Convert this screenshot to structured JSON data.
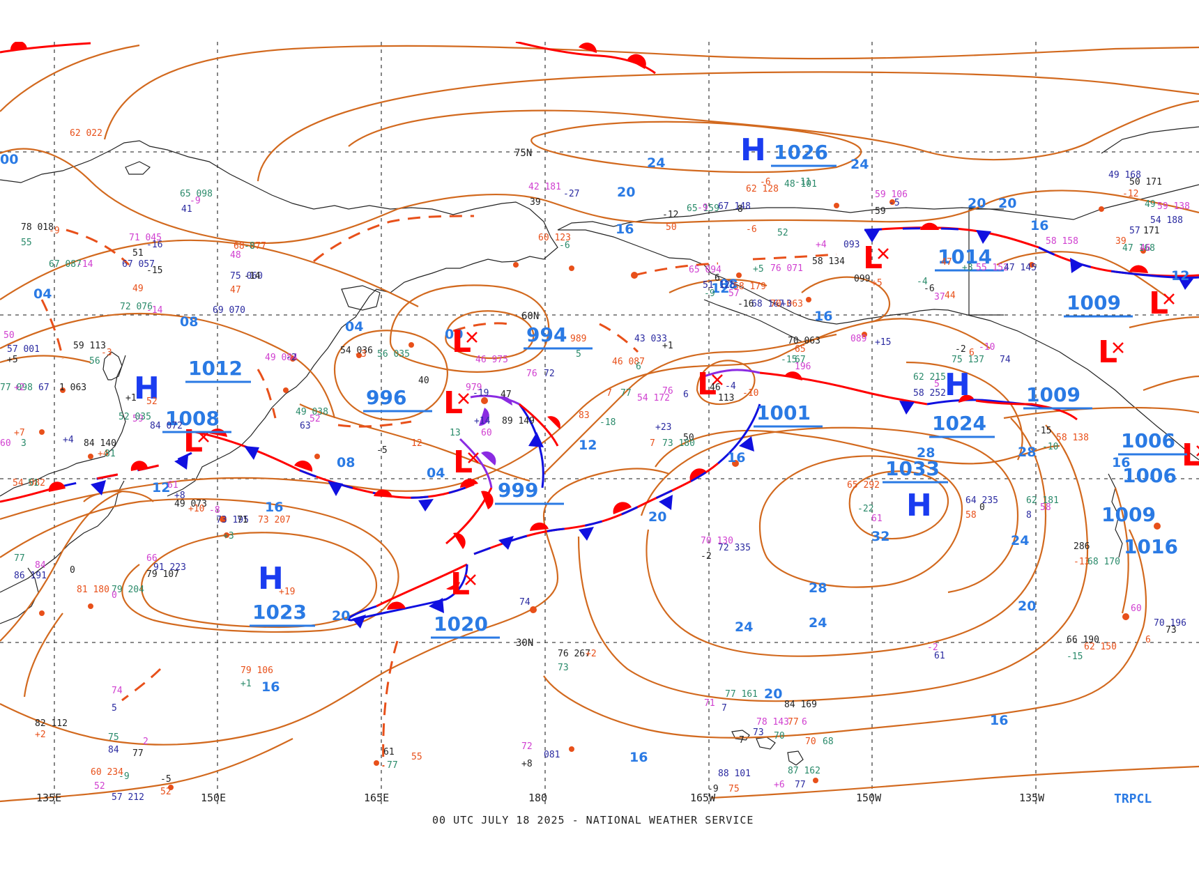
{
  "footer": {
    "text": "00 UTC JULY 18 2025 - NATIONAL WEATHER SERVICE",
    "product": "TRPCL"
  },
  "latitudes": [
    "75N",
    "60N",
    "30N"
  ],
  "longitudes": [
    "135E",
    "150E",
    "165E",
    "180",
    "165W",
    "150W",
    "135W"
  ],
  "colors": {
    "isobar": "#d2691e",
    "high": "#1a3cf0",
    "low": "#ff0000",
    "cold_front": "#1010e0",
    "warm_front": "#ff0000",
    "occluded": "#8a2be2",
    "label": "#2a7ae4"
  },
  "highs": [
    {
      "letter": "H",
      "pressure": "1026"
    },
    {
      "letter": "H",
      "pressure": "1012"
    },
    {
      "letter": "H",
      "pressure": "1023"
    },
    {
      "letter": "H",
      "pressure": "1024"
    },
    {
      "letter": "H",
      "pressure": "1033"
    }
  ],
  "lows": [
    {
      "letter": "L",
      "pressure": "1014"
    },
    {
      "letter": "L",
      "pressure": "1009"
    },
    {
      "letter": "L",
      "pressure": "994"
    },
    {
      "letter": "L",
      "pressure": "996"
    },
    {
      "letter": "L",
      "pressure": "999"
    },
    {
      "letter": "L",
      "pressure": "1008"
    },
    {
      "letter": "L",
      "pressure": "1020"
    },
    {
      "letter": "L",
      "pressure": "1001"
    },
    {
      "letter": "L",
      "pressure": "1009"
    },
    {
      "letter": "L",
      "pressure": "1006"
    }
  ],
  "extra_pressures": [
    "1016",
    "1006",
    "1009"
  ],
  "isobar_labels": [
    "24",
    "24",
    "20",
    "20",
    "16",
    "16",
    "12",
    "12",
    "08",
    "08",
    "04",
    "04",
    "00",
    "00",
    "12",
    "16",
    "16",
    "20",
    "20",
    "24",
    "28",
    "28",
    "32",
    "24",
    "20",
    "20",
    "16",
    "16",
    "16",
    "20",
    "24",
    "28",
    "16",
    "08",
    "16",
    "12",
    "04"
  ],
  "observations": [
    {
      "t": "62 022"
    },
    {
      "t": "65 098"
    },
    {
      "t": "-9"
    },
    {
      "t": "41"
    },
    {
      "t": "78 018"
    },
    {
      "t": "-9"
    },
    {
      "t": "55"
    },
    {
      "t": "71 045"
    },
    {
      "t": "-16"
    },
    {
      "t": "51"
    },
    {
      "t": "68 077"
    },
    {
      "t": "-8"
    },
    {
      "t": "48"
    },
    {
      "t": "75 060"
    },
    {
      "t": "-14"
    },
    {
      "t": "47"
    },
    {
      "t": "67 087"
    },
    {
      "t": "-14"
    },
    {
      "t": "67 057"
    },
    {
      "t": "-15"
    },
    {
      "t": "49"
    },
    {
      "t": "72 076"
    },
    {
      "t": "-14"
    },
    {
      "t": "69 070"
    },
    {
      "t": "59 113"
    },
    {
      "t": "-3"
    },
    {
      "t": "56"
    },
    {
      "t": "49 084"
    },
    {
      "t": "-2"
    },
    {
      "t": "54 036"
    },
    {
      "t": "+3"
    },
    {
      "t": "56 035"
    },
    {
      "t": "42 181"
    },
    {
      "t": "-27"
    },
    {
      "t": "39"
    },
    {
      "t": "60 123"
    },
    {
      "t": "-6"
    },
    {
      "t": "46 975"
    },
    {
      "t": "43 033"
    },
    {
      "t": "+1"
    },
    {
      "t": "989"
    },
    {
      "t": "5"
    },
    {
      "t": "979"
    },
    {
      "t": "-19"
    },
    {
      "t": "47"
    },
    {
      "t": "46 087"
    },
    {
      "t": "6"
    },
    {
      "t": "54 172"
    },
    {
      "t": "+23"
    },
    {
      "t": "50"
    },
    {
      "t": "7"
    },
    {
      "t": "73 180"
    },
    {
      "t": "-8"
    },
    {
      "t": "73 195"
    },
    {
      "t": "71"
    },
    {
      "t": "73 207"
    },
    {
      "t": "+3"
    },
    {
      "t": "66"
    },
    {
      "t": "91 223"
    },
    {
      "t": "79 107"
    },
    {
      "t": "+19"
    },
    {
      "t": "77"
    },
    {
      "t": "84"
    },
    {
      "t": "86 191"
    },
    {
      "t": "0"
    },
    {
      "t": "81 180"
    },
    {
      "t": "79 204"
    },
    {
      "t": "0"
    },
    {
      "t": "74"
    },
    {
      "t": "76 267"
    },
    {
      "t": "+2"
    },
    {
      "t": "73"
    },
    {
      "t": "70 130"
    },
    {
      "t": "72 335"
    },
    {
      "t": "-2"
    },
    {
      "t": "65 292"
    },
    {
      "t": "-22"
    },
    {
      "t": "61"
    },
    {
      "t": "64 235"
    },
    {
      "t": "0"
    },
    {
      "t": "58"
    },
    {
      "t": "62 181"
    },
    {
      "t": "58"
    },
    {
      "t": "8"
    },
    {
      "t": "286"
    },
    {
      "t": "-13"
    },
    {
      "t": "68 170"
    },
    {
      "t": "-2"
    },
    {
      "t": "61"
    },
    {
      "t": "66 190"
    },
    {
      "t": "62 150"
    },
    {
      "t": "-15"
    },
    {
      "t": "60"
    },
    {
      "t": "70 196"
    },
    {
      "t": "73"
    },
    {
      "t": "6"
    },
    {
      "t": "77 161"
    },
    {
      "t": "71"
    },
    {
      "t": "7"
    },
    {
      "t": "84 169"
    },
    {
      "t": "70"
    },
    {
      "t": "68"
    },
    {
      "t": "78 143"
    },
    {
      "t": "73"
    },
    {
      "t": "7"
    },
    {
      "t": "77"
    },
    {
      "t": "70"
    },
    {
      "t": "6"
    },
    {
      "t": "88 101"
    },
    {
      "t": "-9"
    },
    {
      "t": "75"
    },
    {
      "t": "87 162"
    },
    {
      "t": "+6"
    },
    {
      "t": "77"
    },
    {
      "t": "61"
    },
    {
      "t": "55"
    },
    {
      "t": "77"
    },
    {
      "t": "72"
    },
    {
      "t": "081"
    },
    {
      "t": "+8"
    },
    {
      "t": "79 106"
    },
    {
      "t": "+1"
    },
    {
      "t": "74"
    },
    {
      "t": "5"
    },
    {
      "t": "82 112"
    },
    {
      "t": "+2"
    },
    {
      "t": "75"
    },
    {
      "t": "2"
    },
    {
      "t": "84"
    },
    {
      "t": "77"
    },
    {
      "t": "60 234"
    },
    {
      "t": "-9"
    },
    {
      "t": "52"
    },
    {
      "t": "57 212"
    },
    {
      "t": "-5"
    },
    {
      "t": "52"
    },
    {
      "t": "62 215"
    },
    {
      "t": "5"
    },
    {
      "t": "58 252"
    },
    {
      "t": "-2"
    },
    {
      "t": "6"
    },
    {
      "t": "75 137"
    },
    {
      "t": "-10"
    },
    {
      "t": "74"
    },
    {
      "t": "-15"
    },
    {
      "t": "58 138"
    },
    {
      "t": "-10"
    },
    {
      "t": "55 152"
    },
    {
      "t": "47 145"
    },
    {
      "t": "-6"
    },
    {
      "t": "44"
    },
    {
      "t": "-4"
    },
    {
      "t": "37"
    },
    {
      "t": "57"
    },
    {
      "t": "171"
    },
    {
      "t": "39"
    },
    {
      "t": "47 168"
    },
    {
      "t": "46"
    },
    {
      "t": "49 168"
    },
    {
      "t": "50 171"
    },
    {
      "t": "-12"
    },
    {
      "t": "49"
    },
    {
      "t": "59 138"
    },
    {
      "t": "54 188"
    },
    {
      "t": "-12"
    },
    {
      "t": "50"
    },
    {
      "t": "65 159"
    },
    {
      "t": "-9"
    },
    {
      "t": "67 148"
    },
    {
      "t": "-8"
    },
    {
      "t": "62 128"
    },
    {
      "t": "-11"
    },
    {
      "t": "59 106"
    },
    {
      "t": "-5"
    },
    {
      "t": "59"
    },
    {
      "t": "-6"
    },
    {
      "t": "48 101"
    },
    {
      "t": "+4"
    },
    {
      "t": "093"
    },
    {
      "t": "58 134"
    },
    {
      "t": "-6"
    },
    {
      "t": "52"
    },
    {
      "t": "65 094"
    },
    {
      "t": "51 125"
    },
    {
      "t": "6"
    },
    {
      "t": "58 179"
    },
    {
      "t": "-9"
    },
    {
      "t": "57"
    },
    {
      "t": "68 167"
    },
    {
      "t": "-16"
    },
    {
      "t": "70 063"
    },
    {
      "t": "+5"
    },
    {
      "t": "76 071"
    },
    {
      "t": "+3"
    },
    {
      "t": "70 063"
    },
    {
      "t": "65"
    },
    {
      "t": "67"
    },
    {
      "t": "089"
    },
    {
      "t": "+15"
    },
    {
      "t": "099"
    },
    {
      "t": "+5"
    },
    {
      "t": "77 098"
    },
    {
      "t": "+2"
    },
    {
      "t": "67"
    },
    {
      "t": "1 063"
    },
    {
      "t": "+7"
    },
    {
      "t": "3"
    },
    {
      "t": "60"
    },
    {
      "t": "+4"
    },
    {
      "t": "84 140"
    },
    {
      "t": "+4"
    },
    {
      "t": "81"
    },
    {
      "t": "59"
    },
    {
      "t": "84 072"
    },
    {
      "t": "+1"
    },
    {
      "t": "52"
    },
    {
      "t": "52 035"
    },
    {
      "t": "50"
    },
    {
      "t": "57 001"
    },
    {
      "t": "+5"
    },
    {
      "t": "54 082"
    },
    {
      "t": "51"
    },
    {
      "t": "61"
    },
    {
      "t": "+8"
    },
    {
      "t": "49 073"
    },
    {
      "t": "+10"
    },
    {
      "t": "49 038"
    },
    {
      "t": "52"
    },
    {
      "t": "63"
    },
    {
      "t": "-5"
    },
    {
      "t": "12"
    },
    {
      "t": "13"
    },
    {
      "t": "60"
    },
    {
      "t": "+14"
    },
    {
      "t": "89 149"
    },
    {
      "t": "83"
    },
    {
      "t": "-18"
    },
    {
      "t": "76"
    },
    {
      "t": "72"
    },
    {
      "t": "40"
    },
    {
      "t": "7"
    },
    {
      "t": "77"
    },
    {
      "t": "76"
    },
    {
      "t": "6"
    },
    {
      "t": "113"
    },
    {
      "t": "-10"
    },
    {
      "t": "-15"
    },
    {
      "t": "196"
    },
    {
      "t": "-4"
    },
    {
      "t": "46"
    },
    {
      "t": "47"
    },
    {
      "t": "+3"
    },
    {
      "t": "58 158"
    }
  ]
}
